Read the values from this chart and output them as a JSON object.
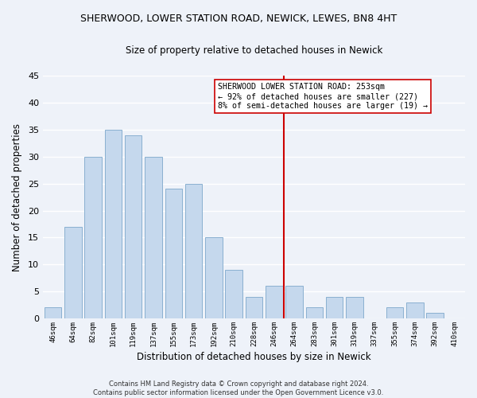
{
  "title": "SHERWOOD, LOWER STATION ROAD, NEWICK, LEWES, BN8 4HT",
  "subtitle": "Size of property relative to detached houses in Newick",
  "xlabel": "Distribution of detached houses by size in Newick",
  "ylabel": "Number of detached properties",
  "bar_color": "#c5d8ed",
  "bar_edge_color": "#8ab0d0",
  "categories": [
    "46sqm",
    "64sqm",
    "82sqm",
    "101sqm",
    "119sqm",
    "137sqm",
    "155sqm",
    "173sqm",
    "192sqm",
    "210sqm",
    "228sqm",
    "246sqm",
    "264sqm",
    "283sqm",
    "301sqm",
    "319sqm",
    "337sqm",
    "355sqm",
    "374sqm",
    "392sqm",
    "410sqm"
  ],
  "values": [
    2,
    17,
    30,
    35,
    34,
    30,
    24,
    25,
    15,
    9,
    4,
    6,
    6,
    2,
    4,
    4,
    0,
    2,
    3,
    1,
    0
  ],
  "ylim": [
    0,
    45
  ],
  "yticks": [
    0,
    5,
    10,
    15,
    20,
    25,
    30,
    35,
    40,
    45
  ],
  "vline_color": "#cc0000",
  "annotation_text": "SHERWOOD LOWER STATION ROAD: 253sqm\n← 92% of detached houses are smaller (227)\n8% of semi-detached houses are larger (19) →",
  "footer_text": "Contains HM Land Registry data © Crown copyright and database right 2024.\nContains public sector information licensed under the Open Government Licence v3.0.",
  "background_color": "#eef2f9",
  "grid_color": "#ffffff"
}
